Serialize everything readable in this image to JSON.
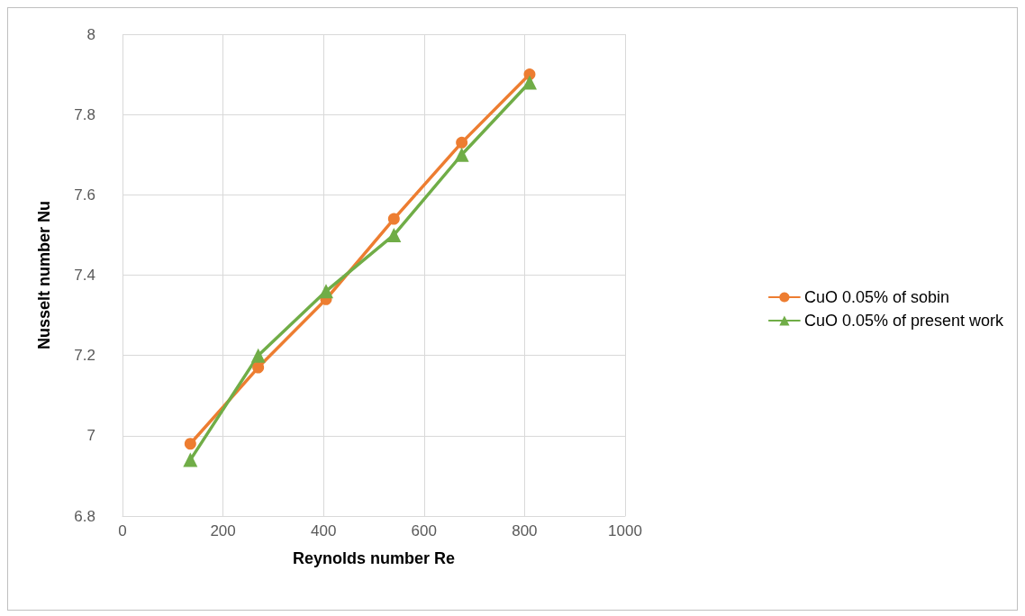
{
  "chart_data": {
    "type": "line",
    "xlabel": "Reynolds number Re",
    "ylabel": "Nusselt number Nu",
    "xlim": [
      0,
      1000
    ],
    "xticks": [
      0,
      200,
      400,
      600,
      800,
      1000
    ],
    "ylim": [
      6.8,
      8
    ],
    "yticks": [
      6.8,
      7,
      7.2,
      7.4,
      7.6,
      7.8,
      8
    ],
    "grid": true,
    "legend": "right",
    "line_style": "solid",
    "series": [
      {
        "name": "CuO 0.05% of sobin",
        "color": "#ed7d31",
        "marker": "circle",
        "x": [
          135,
          270,
          405,
          540,
          675,
          810
        ],
        "values": [
          6.98,
          7.17,
          7.34,
          7.54,
          7.73,
          7.9
        ]
      },
      {
        "name": "CuO 0.05% of present work",
        "color": "#70ad47",
        "marker": "triangle",
        "x": [
          135,
          270,
          405,
          540,
          675,
          810
        ],
        "values": [
          6.94,
          7.2,
          7.36,
          7.5,
          7.7,
          7.88
        ]
      }
    ]
  }
}
